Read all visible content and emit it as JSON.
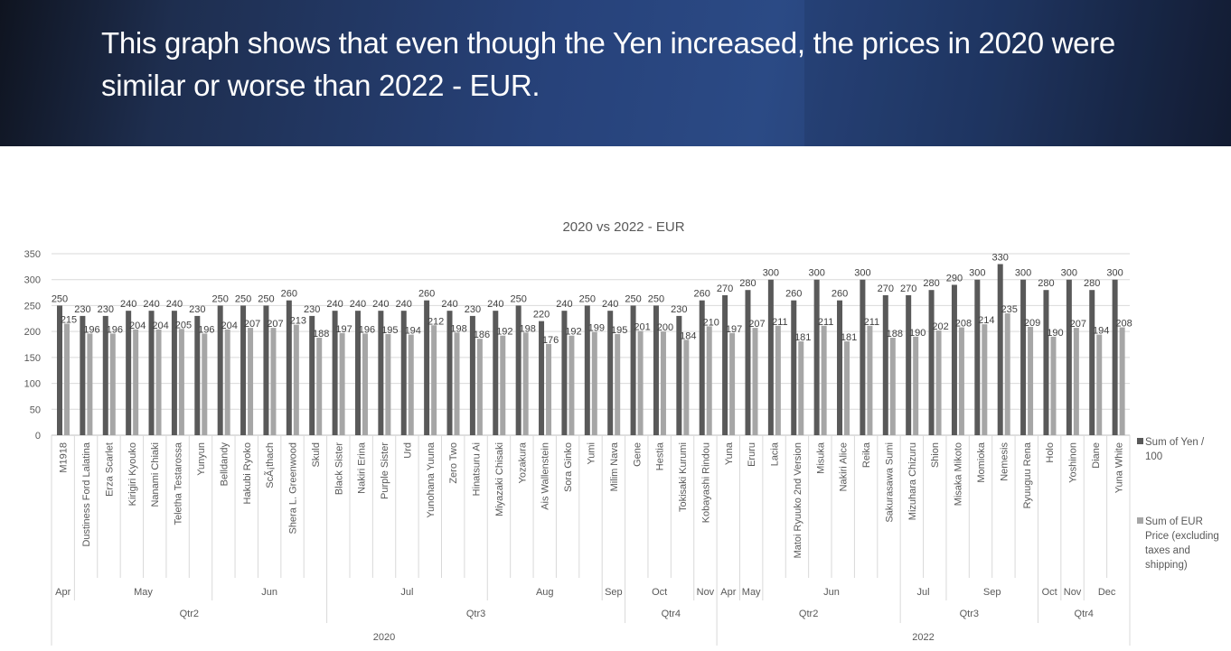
{
  "slide": {
    "title": "This graph shows that even though the Yen increased, the prices in 2020 were similar or worse than 2022 - EUR."
  },
  "chart_data": {
    "type": "bar",
    "title": "2020 vs 2022 - EUR",
    "xlabel": "",
    "ylabel": "",
    "ylim": [
      0,
      350
    ],
    "yticks": [
      0,
      50,
      100,
      150,
      200,
      250,
      300,
      350
    ],
    "grid": true,
    "legend_position": "right",
    "colors": {
      "yen": "#595959",
      "eur": "#a6a6a6",
      "grid": "#d9d9d9",
      "text": "#595959"
    },
    "categories": [
      {
        "name": "M1918",
        "month": "Apr",
        "quarter": "Qtr2",
        "year": "2020"
      },
      {
        "name": "Dustiness Ford Lalatina",
        "month": "May",
        "quarter": "Qtr2",
        "year": "2020"
      },
      {
        "name": "Erza Scarlet",
        "month": "May",
        "quarter": "Qtr2",
        "year": "2020"
      },
      {
        "name": "Kirigiri Kyouko",
        "month": "May",
        "quarter": "Qtr2",
        "year": "2020"
      },
      {
        "name": "Nanami Chiaki",
        "month": "May",
        "quarter": "Qtr2",
        "year": "2020"
      },
      {
        "name": "Teletha Testarossa",
        "month": "May",
        "quarter": "Qtr2",
        "year": "2020"
      },
      {
        "name": "Yunyun",
        "month": "May",
        "quarter": "Qtr2",
        "year": "2020"
      },
      {
        "name": "Belldandy",
        "month": "Jun",
        "quarter": "Qtr2",
        "year": "2020"
      },
      {
        "name": "Hakubi Ryoko",
        "month": "Jun",
        "quarter": "Qtr2",
        "year": "2020"
      },
      {
        "name": "ScÃ¡thach",
        "month": "Jun",
        "quarter": "Qtr2",
        "year": "2020"
      },
      {
        "name": "Shera L. Greenwood",
        "month": "Jun",
        "quarter": "Qtr2",
        "year": "2020"
      },
      {
        "name": "Skuld",
        "month": "Jun",
        "quarter": "Qtr2",
        "year": "2020"
      },
      {
        "name": "Black Sister",
        "month": "Jul",
        "quarter": "Qtr3",
        "year": "2020"
      },
      {
        "name": "Nakiri Erina",
        "month": "Jul",
        "quarter": "Qtr3",
        "year": "2020"
      },
      {
        "name": "Purple Sister",
        "month": "Jul",
        "quarter": "Qtr3",
        "year": "2020"
      },
      {
        "name": "Urd",
        "month": "Jul",
        "quarter": "Qtr3",
        "year": "2020"
      },
      {
        "name": "Yunohana Yuuna",
        "month": "Jul",
        "quarter": "Qtr3",
        "year": "2020"
      },
      {
        "name": "Zero Two",
        "month": "Jul",
        "quarter": "Qtr3",
        "year": "2020"
      },
      {
        "name": "Hinatsuru Ai",
        "month": "Jul",
        "quarter": "Qtr3",
        "year": "2020"
      },
      {
        "name": "Miyazaki Chisaki",
        "month": "Aug",
        "quarter": "Qtr3",
        "year": "2020"
      },
      {
        "name": "Yozakura",
        "month": "Aug",
        "quarter": "Qtr3",
        "year": "2020"
      },
      {
        "name": "Ais Wallenstein",
        "month": "Aug",
        "quarter": "Qtr3",
        "year": "2020"
      },
      {
        "name": "Sora Ginko",
        "month": "Aug",
        "quarter": "Qtr3",
        "year": "2020"
      },
      {
        "name": "Yumi",
        "month": "Aug",
        "quarter": "Qtr3",
        "year": "2020"
      },
      {
        "name": "Milim Nava",
        "month": "Sep",
        "quarter": "Qtr3",
        "year": "2020"
      },
      {
        "name": "Gene",
        "month": "Oct",
        "quarter": "Qtr4",
        "year": "2020"
      },
      {
        "name": "Hestia",
        "month": "Oct",
        "quarter": "Qtr4",
        "year": "2020"
      },
      {
        "name": "Tokisaki Kurumi",
        "month": "Oct",
        "quarter": "Qtr4",
        "year": "2020"
      },
      {
        "name": "Kobayashi Rindou",
        "month": "Nov",
        "quarter": "Qtr4",
        "year": "2020"
      },
      {
        "name": "Yuna",
        "month": "Apr",
        "quarter": "Qtr2",
        "year": "2022"
      },
      {
        "name": "Eruru",
        "month": "May",
        "quarter": "Qtr2",
        "year": "2022"
      },
      {
        "name": "Lacia",
        "month": "Jun",
        "quarter": "Qtr2",
        "year": "2022"
      },
      {
        "name": "Matoi Ryuuko 2nd Version",
        "month": "Jun",
        "quarter": "Qtr2",
        "year": "2022"
      },
      {
        "name": "Misuka",
        "month": "Jun",
        "quarter": "Qtr2",
        "year": "2022"
      },
      {
        "name": "Nakiri Alice",
        "month": "Jun",
        "quarter": "Qtr2",
        "year": "2022"
      },
      {
        "name": "Reika",
        "month": "Jun",
        "quarter": "Qtr2",
        "year": "2022"
      },
      {
        "name": "Sakurasawa Sumi",
        "month": "Jun",
        "quarter": "Qtr2",
        "year": "2022"
      },
      {
        "name": "Mizuhara Chizuru",
        "month": "Jul",
        "quarter": "Qtr3",
        "year": "2022"
      },
      {
        "name": "Shion",
        "month": "Jul",
        "quarter": "Qtr3",
        "year": "2022"
      },
      {
        "name": "Misaka Mikoto",
        "month": "Sep",
        "quarter": "Qtr3",
        "year": "2022"
      },
      {
        "name": "Momioka",
        "month": "Sep",
        "quarter": "Qtr3",
        "year": "2022"
      },
      {
        "name": "Nemesis",
        "month": "Sep",
        "quarter": "Qtr3",
        "year": "2022"
      },
      {
        "name": "Ryuuguu Rena",
        "month": "Sep",
        "quarter": "Qtr3",
        "year": "2022"
      },
      {
        "name": "Holo",
        "month": "Oct",
        "quarter": "Qtr4",
        "year": "2022"
      },
      {
        "name": "Yoshinon",
        "month": "Nov",
        "quarter": "Qtr4",
        "year": "2022"
      },
      {
        "name": "Diane",
        "month": "Dec",
        "quarter": "Qtr4",
        "year": "2022"
      },
      {
        "name": "Yuna White",
        "month": "Dec",
        "quarter": "Qtr4",
        "year": "2022"
      }
    ],
    "series": [
      {
        "name": "Sum of Yen / 100",
        "color_key": "yen",
        "values": [
          250,
          230,
          230,
          240,
          240,
          240,
          230,
          250,
          250,
          250,
          260,
          230,
          240,
          240,
          240,
          240,
          260,
          240,
          230,
          240,
          250,
          220,
          240,
          250,
          240,
          250,
          250,
          230,
          260,
          270,
          280,
          300,
          260,
          300,
          260,
          300,
          270,
          270,
          280,
          290,
          300,
          330,
          300,
          280,
          300,
          280,
          300
        ]
      },
      {
        "name": "Sum of EUR Price (excluding taxes and shipping)",
        "color_key": "eur",
        "values": [
          215,
          196,
          196,
          204,
          204,
          205,
          196,
          204,
          207,
          207,
          213,
          188,
          197,
          196,
          195,
          194,
          212,
          198,
          186,
          192,
          198,
          176,
          192,
          199,
          195,
          201,
          200,
          184,
          210,
          197,
          207,
          211,
          181,
          211,
          181,
          211,
          188,
          190,
          202,
          208,
          214,
          235,
          209,
          190,
          207,
          194,
          208
        ]
      }
    ],
    "legend": [
      {
        "lines": [
          "Sum of Yen /",
          "100"
        ]
      },
      {
        "lines": [
          "Sum of EUR",
          "Price (excluding",
          "taxes and",
          "shipping)"
        ]
      }
    ]
  }
}
